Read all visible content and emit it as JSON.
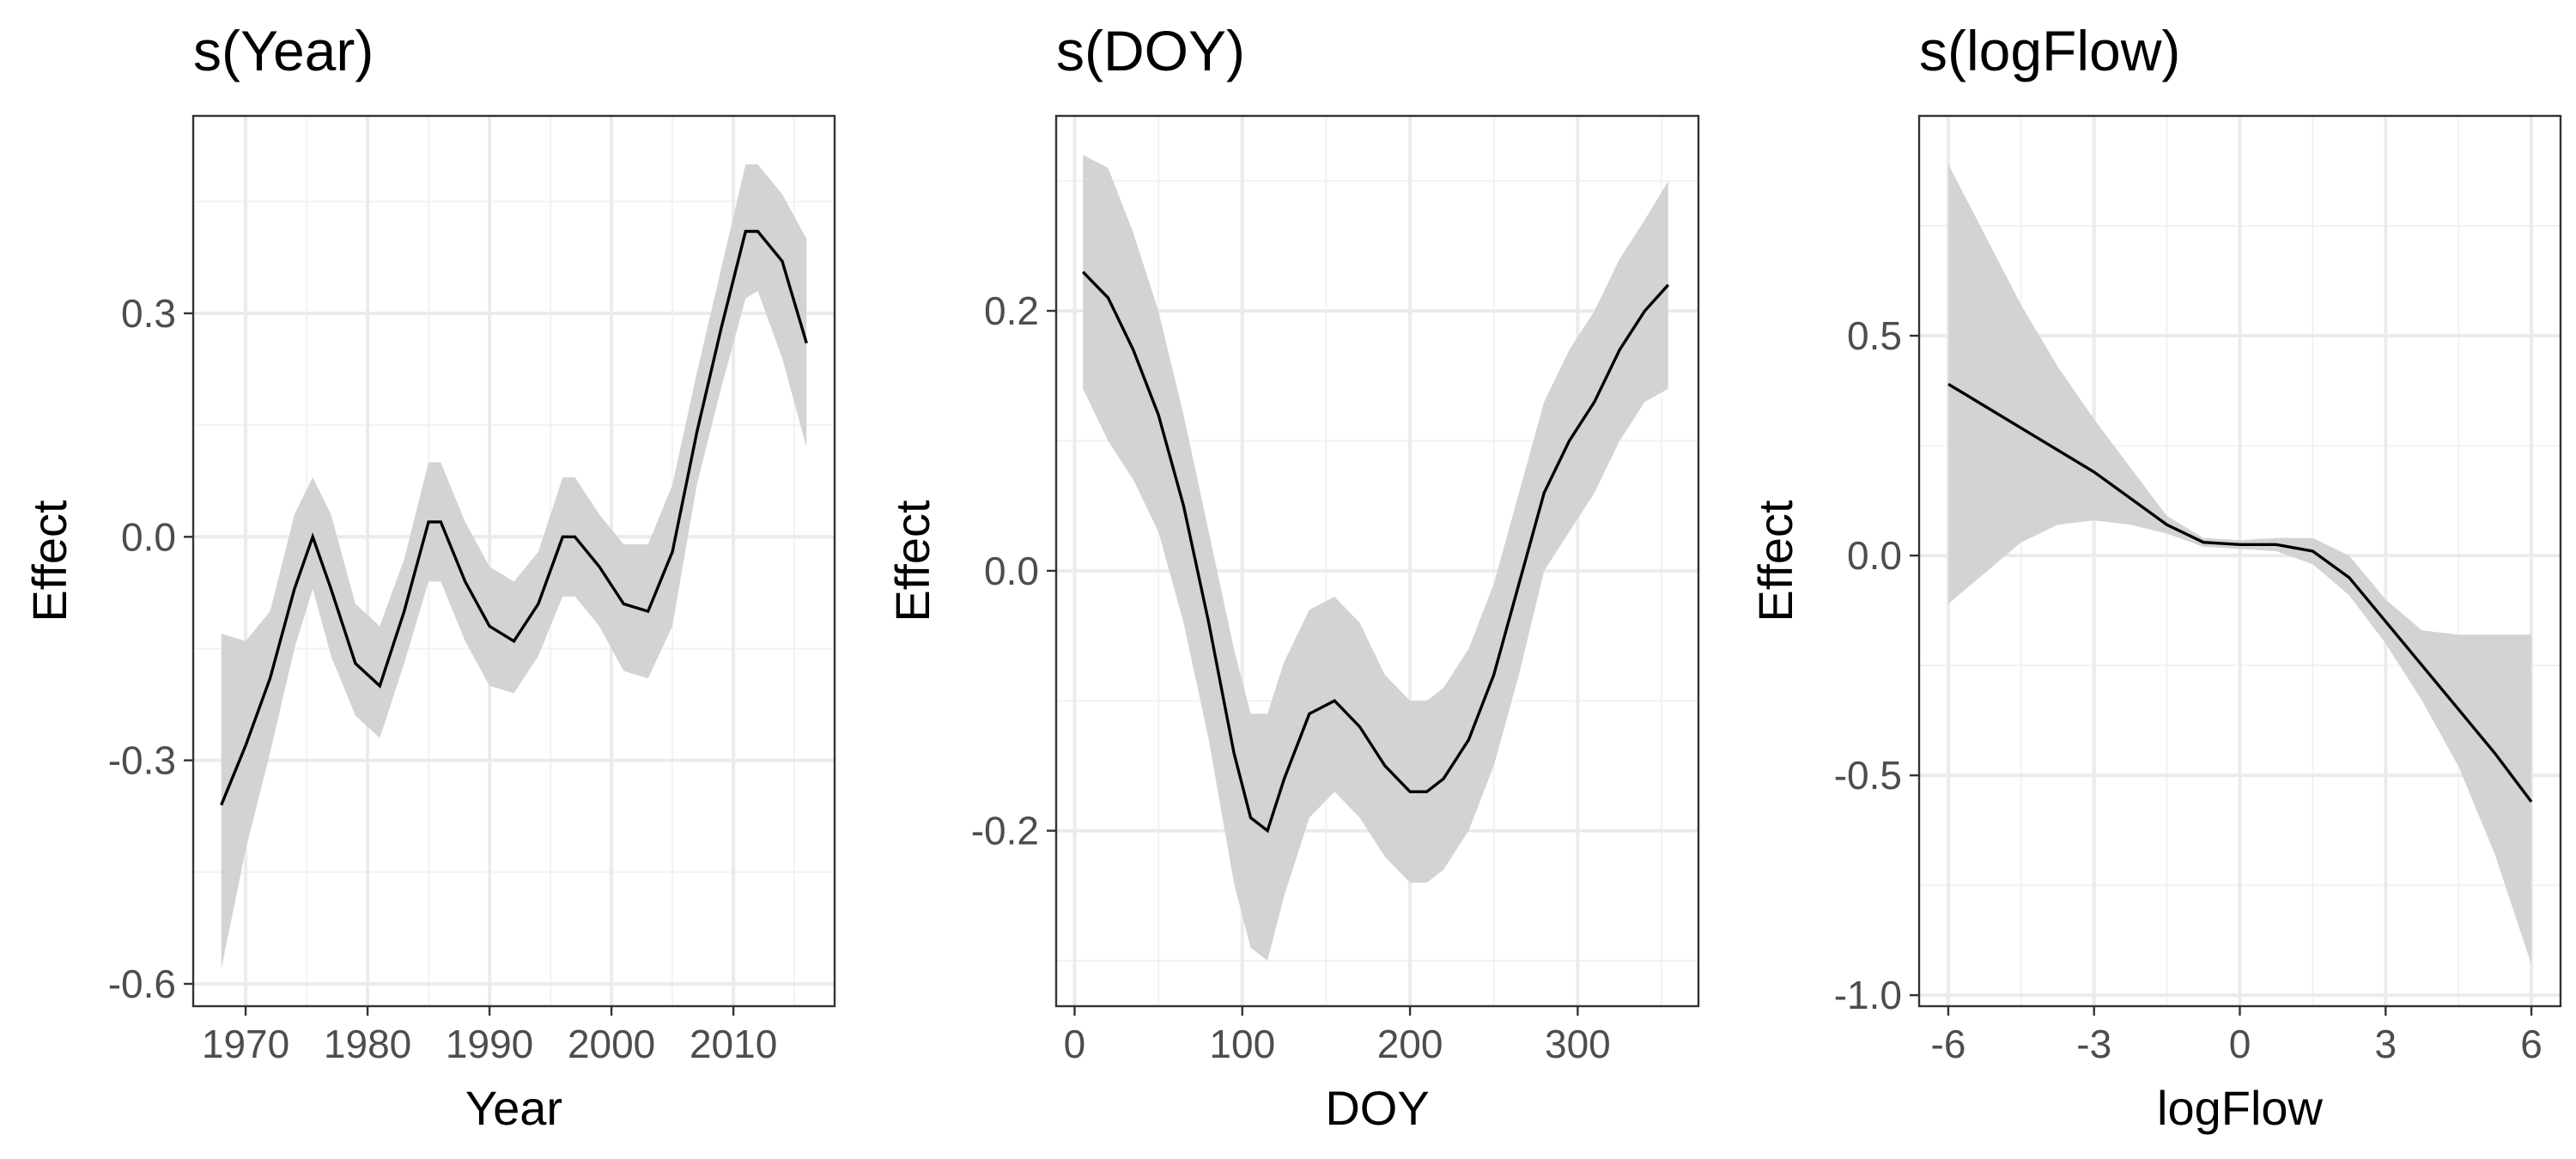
{
  "chart_data": [
    {
      "type": "line",
      "title": "s(Year)",
      "xlabel": "Year",
      "ylabel": "Effect",
      "xlim": [
        1965.7,
        2018.3
      ],
      "ylim": [
        -0.63,
        0.565
      ],
      "xticks": [
        1970,
        1980,
        1990,
        2000,
        2010
      ],
      "xtick_labels": [
        "1970",
        "1980",
        "1990",
        "2000",
        "2010"
      ],
      "xminor": [
        1965,
        1975,
        1985,
        1995,
        2005,
        2015
      ],
      "yticks": [
        -0.6,
        -0.3,
        0.0,
        0.3
      ],
      "ytick_labels": [
        "-0.6",
        "-0.3",
        "0.0",
        "0.3"
      ],
      "yminor": [
        -0.45,
        -0.15,
        0.15,
        0.45
      ],
      "grid": true,
      "series": [
        {
          "x": [
            1968,
            1970,
            1972,
            1974,
            1975.5,
            1977,
            1979,
            1981,
            1983,
            1985,
            1986,
            1988,
            1990,
            1992,
            1994,
            1996,
            1997,
            1999,
            2001,
            2003,
            2005,
            2007,
            2009,
            2011,
            2012,
            2014,
            2016
          ],
          "y": [
            -0.36,
            -0.28,
            -0.19,
            -0.07,
            0.0,
            -0.07,
            -0.17,
            -0.2,
            -0.1,
            0.02,
            0.02,
            -0.06,
            -0.12,
            -0.14,
            -0.09,
            0.0,
            0.0,
            -0.04,
            -0.09,
            -0.1,
            -0.02,
            0.14,
            0.28,
            0.41,
            0.41,
            0.37,
            0.26
          ],
          "lower": [
            -0.58,
            -0.42,
            -0.29,
            -0.15,
            -0.07,
            -0.16,
            -0.24,
            -0.27,
            -0.17,
            -0.06,
            -0.06,
            -0.14,
            -0.2,
            -0.21,
            -0.16,
            -0.08,
            -0.08,
            -0.12,
            -0.18,
            -0.19,
            -0.12,
            0.07,
            0.2,
            0.32,
            0.33,
            0.24,
            0.12
          ],
          "upper": [
            -0.13,
            -0.14,
            -0.1,
            0.03,
            0.08,
            0.03,
            -0.09,
            -0.12,
            -0.03,
            0.1,
            0.1,
            0.02,
            -0.04,
            -0.06,
            -0.02,
            0.08,
            0.08,
            0.03,
            -0.01,
            -0.01,
            0.07,
            0.22,
            0.36,
            0.5,
            0.5,
            0.46,
            0.4
          ]
        }
      ]
    },
    {
      "type": "line",
      "title": "s(DOY)",
      "xlabel": "DOY",
      "ylabel": "Effect",
      "xlim": [
        -11,
        372
      ],
      "ylim": [
        -0.335,
        0.35
      ],
      "xticks": [
        0,
        100,
        200,
        300
      ],
      "xtick_labels": [
        "0",
        "100",
        "200",
        "300"
      ],
      "xminor": [
        -50,
        50,
        150,
        250,
        350
      ],
      "yticks": [
        -0.2,
        0.0,
        0.2
      ],
      "ytick_labels": [
        "-0.2",
        "0.0",
        "0.2"
      ],
      "yminor": [
        -0.3,
        -0.1,
        0.1,
        0.3
      ],
      "grid": true,
      "series": [
        {
          "x": [
            5,
            20,
            35,
            50,
            65,
            80,
            95,
            105,
            115,
            125,
            140,
            155,
            170,
            185,
            200,
            210,
            220,
            235,
            250,
            265,
            280,
            295,
            310,
            325,
            340,
            354
          ],
          "y": [
            0.23,
            0.21,
            0.17,
            0.12,
            0.05,
            -0.04,
            -0.14,
            -0.19,
            -0.2,
            -0.16,
            -0.11,
            -0.1,
            -0.12,
            -0.15,
            -0.17,
            -0.17,
            -0.16,
            -0.13,
            -0.08,
            -0.01,
            0.06,
            0.1,
            0.13,
            0.17,
            0.2,
            0.22
          ],
          "lower": [
            0.14,
            0.1,
            0.07,
            0.03,
            -0.04,
            -0.13,
            -0.24,
            -0.29,
            -0.3,
            -0.25,
            -0.19,
            -0.17,
            -0.19,
            -0.22,
            -0.24,
            -0.24,
            -0.23,
            -0.2,
            -0.15,
            -0.08,
            0.0,
            0.03,
            0.06,
            0.1,
            0.13,
            0.14
          ],
          "upper": [
            0.32,
            0.31,
            0.26,
            0.2,
            0.12,
            0.03,
            -0.06,
            -0.11,
            -0.11,
            -0.07,
            -0.03,
            -0.02,
            -0.04,
            -0.08,
            -0.1,
            -0.1,
            -0.09,
            -0.06,
            -0.01,
            0.06,
            0.13,
            0.17,
            0.2,
            0.24,
            0.27,
            0.3
          ]
        }
      ]
    },
    {
      "type": "line",
      "title": "s(logFlow)",
      "xlabel": "logFlow",
      "ylabel": "Effect",
      "xlim": [
        -6.6,
        6.6
      ],
      "ylim": [
        -1.025,
        1.0
      ],
      "xticks": [
        -6,
        -3,
        0,
        3,
        6
      ],
      "xtick_labels": [
        "-6",
        "-3",
        "0",
        "3",
        "6"
      ],
      "xminor": [
        -4.5,
        -1.5,
        1.5,
        4.5
      ],
      "yticks": [
        -1.0,
        -0.5,
        0.0,
        0.5
      ],
      "ytick_labels": [
        "-1.0",
        "-0.5",
        "0.0",
        "0.5"
      ],
      "yminor": [
        -0.75,
        -0.25,
        0.25,
        0.75
      ],
      "grid": true,
      "series": [
        {
          "x": [
            -6,
            -5.25,
            -4.5,
            -3.75,
            -3,
            -2.25,
            -1.5,
            -0.75,
            0,
            0.75,
            1.5,
            2.25,
            3,
            3.75,
            4.5,
            5.25,
            6
          ],
          "y": [
            0.39,
            0.34,
            0.29,
            0.24,
            0.19,
            0.13,
            0.07,
            0.03,
            0.025,
            0.025,
            0.01,
            -0.05,
            -0.15,
            -0.25,
            -0.35,
            -0.45,
            -0.56
          ],
          "lower": [
            -0.11,
            -0.04,
            0.03,
            0.07,
            0.08,
            0.07,
            0.05,
            0.02,
            0.015,
            0.01,
            -0.02,
            -0.09,
            -0.2,
            -0.33,
            -0.48,
            -0.68,
            -0.93
          ],
          "upper": [
            0.89,
            0.73,
            0.57,
            0.43,
            0.31,
            0.2,
            0.09,
            0.04,
            0.035,
            0.04,
            0.04,
            0.0,
            -0.1,
            -0.17,
            -0.18,
            -0.18,
            -0.18
          ]
        }
      ]
    }
  ]
}
